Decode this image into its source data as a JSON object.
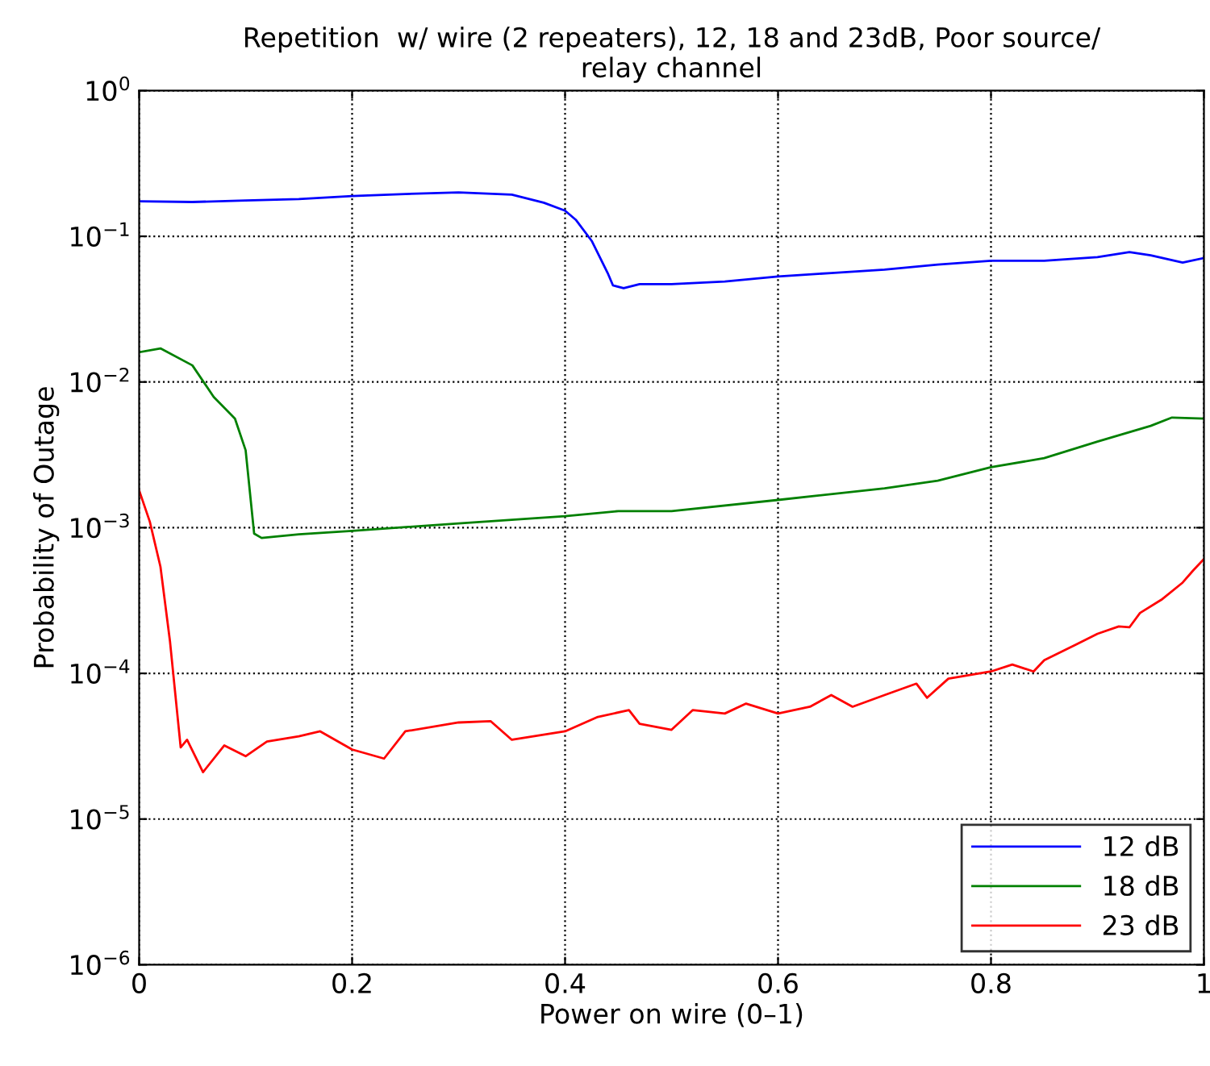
{
  "chart_data": {
    "type": "line",
    "title": "Repetition  w/ wire (2 repeaters), 12, 18 and 23dB, Poor source/\nrelay channel",
    "xlabel": "Power on wire (0–1)",
    "ylabel": "Probability of Outage",
    "log": "y",
    "grid": true,
    "legend": "bottom right",
    "line_style": "solid",
    "marker": "none",
    "xlim": [
      0,
      1
    ],
    "xticks": [
      0,
      0.2,
      0.4,
      0.6,
      0.8,
      1
    ],
    "ylim": [
      1e-06,
      1
    ],
    "yticks": [
      {
        "value": 1e-06,
        "label": "10$^{−6}$"
      },
      {
        "value": 1e-05,
        "label": "10$^{−5}$"
      },
      {
        "value": 0.0001,
        "label": "10$^{−4}$"
      },
      {
        "value": 0.001,
        "label": "10$^{−3}$"
      },
      {
        "value": 0.01,
        "label": "10$^{−2}$"
      },
      {
        "value": 0.1,
        "label": "10$^{−1}$"
      },
      {
        "value": 1,
        "label": "10$^{0}$"
      }
    ],
    "series": [
      {
        "name": "12 dB",
        "color": "#0000ff",
        "x": [
          0,
          0.05,
          0.1,
          0.15,
          0.2,
          0.25,
          0.3,
          0.35,
          0.38,
          0.4,
          0.41,
          0.425,
          0.44,
          0.445,
          0.455,
          0.47,
          0.5,
          0.55,
          0.6,
          0.65,
          0.7,
          0.75,
          0.8,
          0.85,
          0.9,
          0.93,
          0.95,
          0.98,
          1.0
        ],
        "values": [
          0.174,
          0.172,
          0.176,
          0.18,
          0.189,
          0.195,
          0.2,
          0.193,
          0.17,
          0.15,
          0.13,
          0.093,
          0.056,
          0.046,
          0.044,
          0.047,
          0.047,
          0.049,
          0.053,
          0.056,
          0.059,
          0.064,
          0.068,
          0.068,
          0.072,
          0.078,
          0.074,
          0.066,
          0.071
        ]
      },
      {
        "name": "18 dB",
        "color": "#008000",
        "x": [
          0,
          0.02,
          0.05,
          0.07,
          0.09,
          0.1,
          0.108,
          0.115,
          0.15,
          0.2,
          0.3,
          0.4,
          0.45,
          0.5,
          0.6,
          0.7,
          0.75,
          0.8,
          0.85,
          0.9,
          0.95,
          0.97,
          1.0
        ],
        "values": [
          0.016,
          0.017,
          0.013,
          0.0079,
          0.0056,
          0.0034,
          0.00091,
          0.00085,
          0.0009,
          0.00095,
          0.00107,
          0.0012,
          0.0013,
          0.0013,
          0.00155,
          0.00186,
          0.0021,
          0.0026,
          0.003,
          0.0039,
          0.005,
          0.0057,
          0.0056
        ]
      },
      {
        "name": "23 dB",
        "color": "#ff0000",
        "x": [
          0,
          0.01,
          0.02,
          0.029,
          0.039,
          0.045,
          0.06,
          0.08,
          0.1,
          0.12,
          0.15,
          0.17,
          0.2,
          0.23,
          0.25,
          0.3,
          0.33,
          0.35,
          0.4,
          0.43,
          0.46,
          0.47,
          0.5,
          0.52,
          0.55,
          0.57,
          0.6,
          0.63,
          0.65,
          0.67,
          0.7,
          0.73,
          0.74,
          0.76,
          0.8,
          0.82,
          0.84,
          0.85,
          0.88,
          0.9,
          0.92,
          0.93,
          0.94,
          0.96,
          0.98,
          0.99,
          1.0
        ],
        "values": [
          0.0018,
          0.0011,
          0.00054,
          0.000165,
          3.1e-05,
          3.5e-05,
          2.1e-05,
          3.2e-05,
          2.7e-05,
          3.4e-05,
          3.7e-05,
          4e-05,
          3e-05,
          2.6e-05,
          4e-05,
          4.6e-05,
          4.7e-05,
          3.5e-05,
          4e-05,
          5e-05,
          5.6e-05,
          4.5e-05,
          4.1e-05,
          5.6e-05,
          5.3e-05,
          6.2e-05,
          5.3e-05,
          5.9e-05,
          7.1e-05,
          5.9e-05,
          7.1e-05,
          8.5e-05,
          6.8e-05,
          9.2e-05,
          0.000103,
          0.000115,
          0.000103,
          0.000123,
          0.000158,
          0.000187,
          0.00021,
          0.000207,
          0.00026,
          0.00032,
          0.00042,
          0.00051,
          0.00061
        ]
      }
    ]
  }
}
